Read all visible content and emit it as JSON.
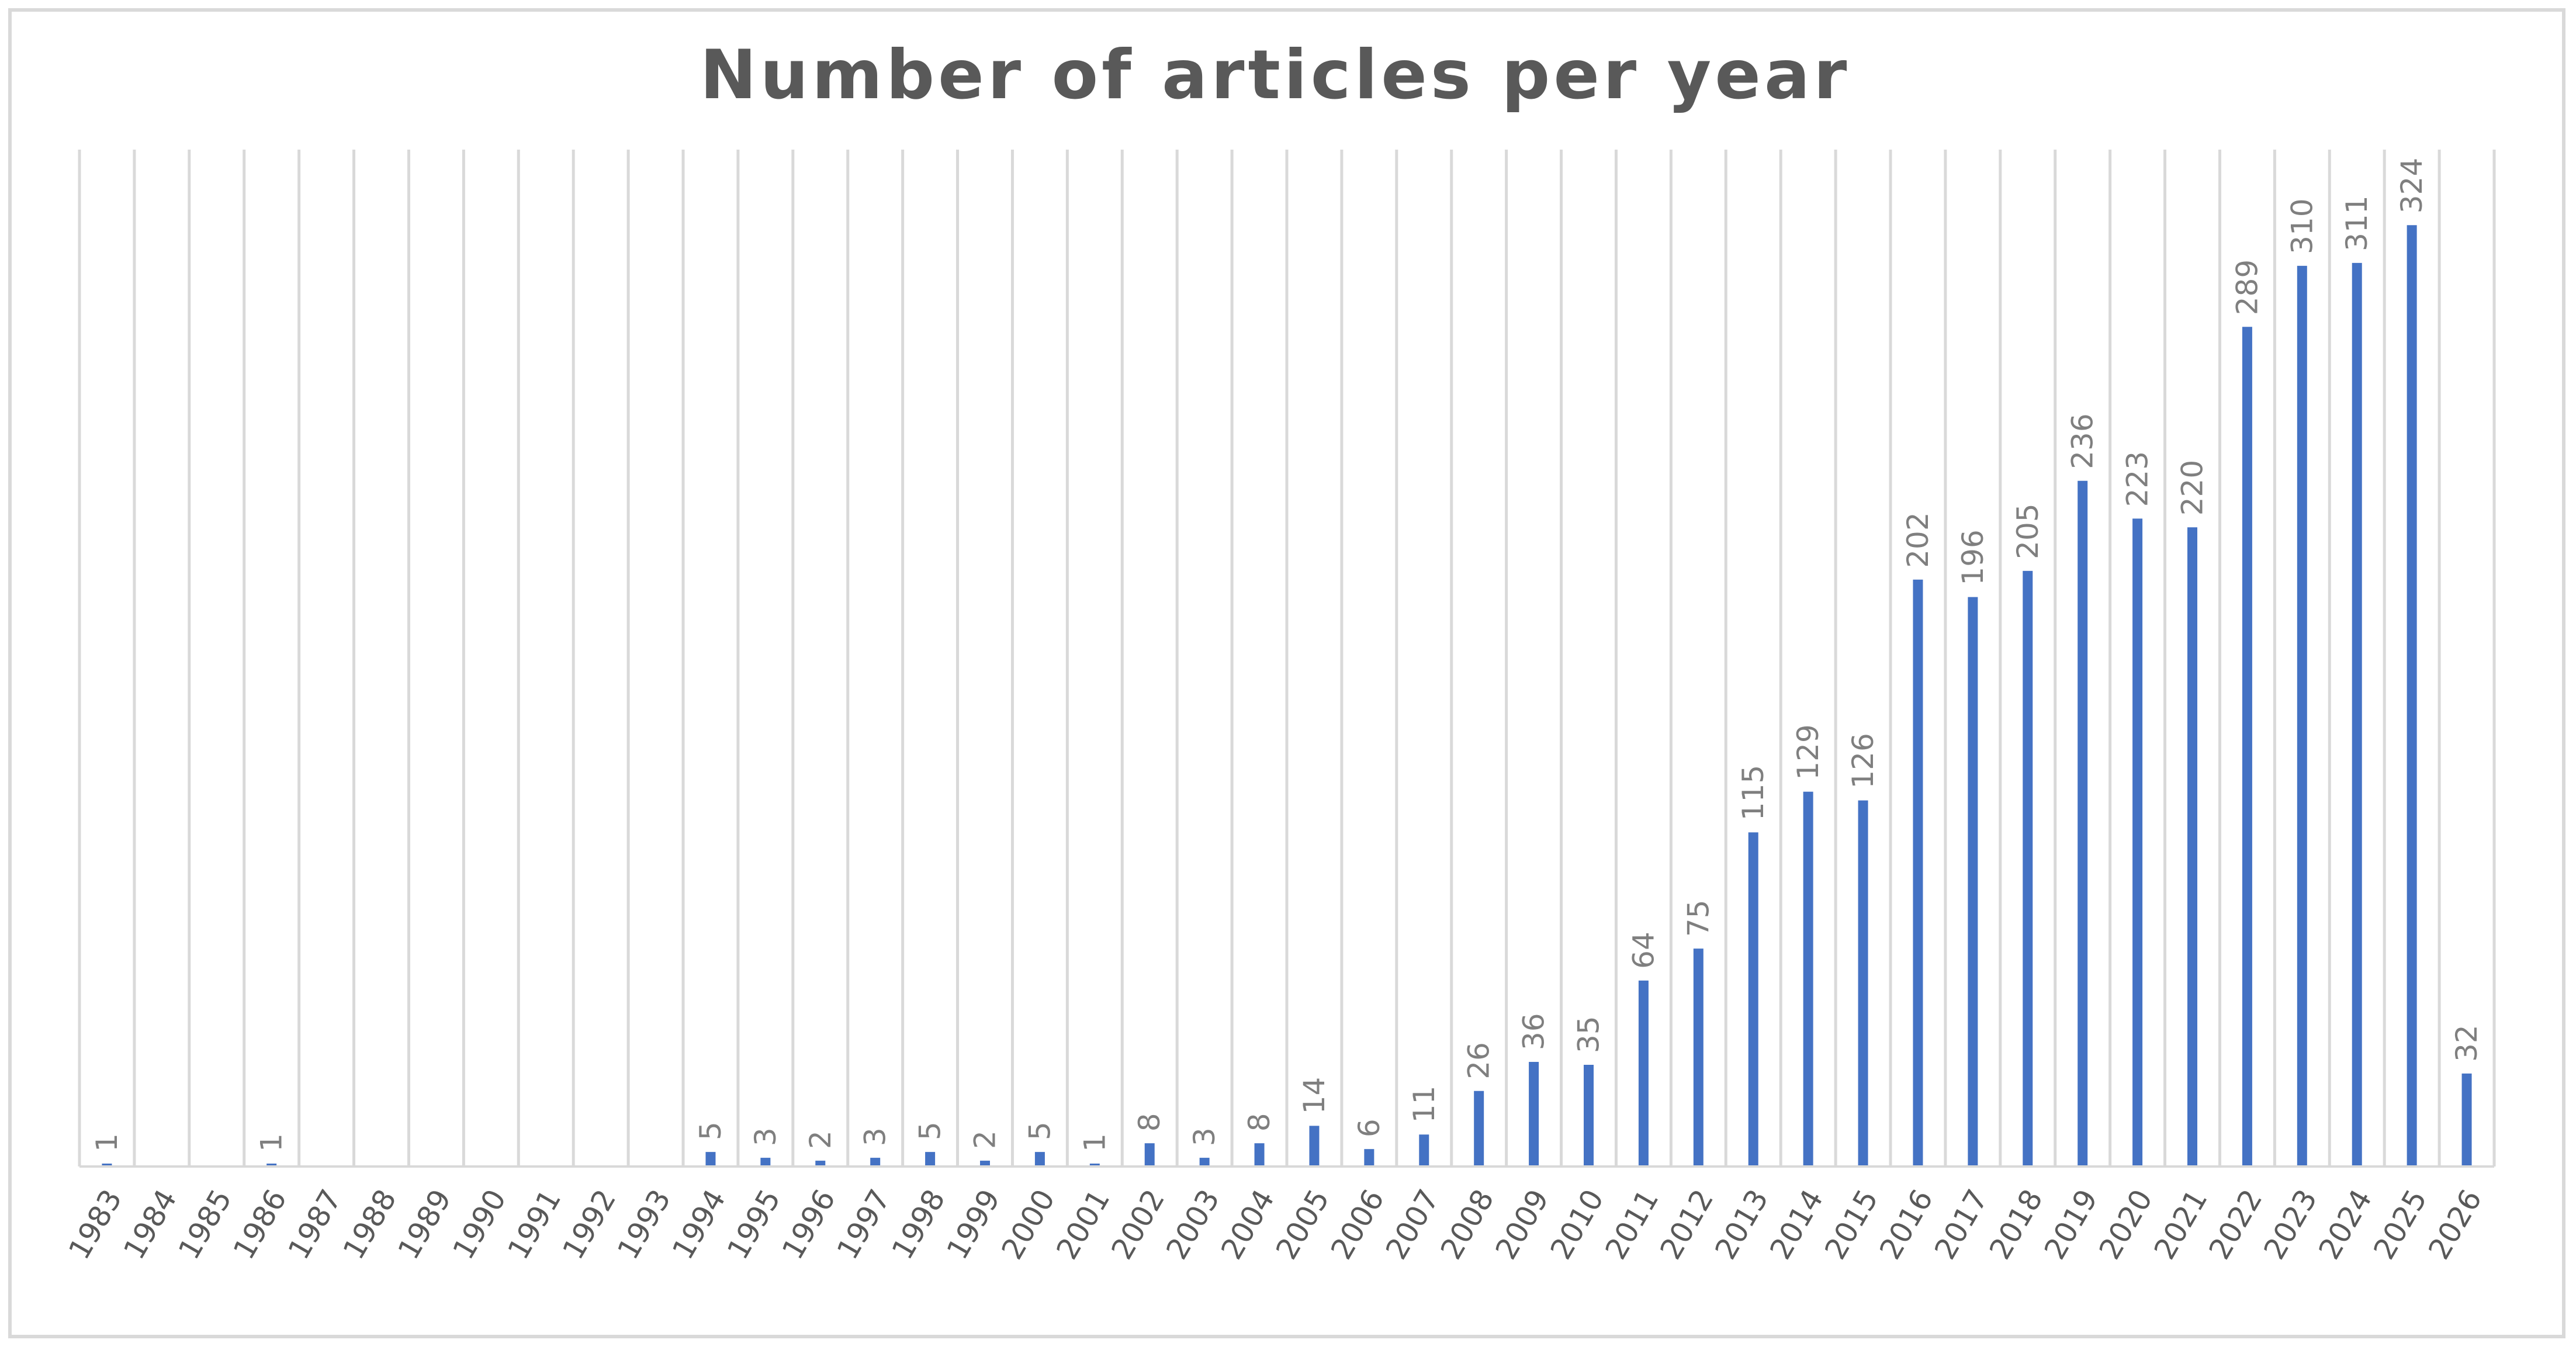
{
  "chart_data": {
    "type": "bar",
    "title": "Number of articles per year",
    "xlabel": "",
    "ylabel": "",
    "ylim": [
      0,
      350
    ],
    "grid": "vertical",
    "legend": "none",
    "bar_color": "#4472c4",
    "grid_color": "#d9d9d9",
    "categories": [
      "1983",
      "1984",
      "1985",
      "1986",
      "1987",
      "1988",
      "1989",
      "1990",
      "1991",
      "1992",
      "1993",
      "1994",
      "1995",
      "1996",
      "1997",
      "1998",
      "1999",
      "2000",
      "2001",
      "2002",
      "2003",
      "2004",
      "2005",
      "2006",
      "2007",
      "2008",
      "2009",
      "2010",
      "2011",
      "2012",
      "2013",
      "2014",
      "2015",
      "2016",
      "2017",
      "2018",
      "2019",
      "2020",
      "2021",
      "2022",
      "2023",
      "2024",
      "2025",
      "2026"
    ],
    "values": [
      1,
      null,
      null,
      1,
      null,
      null,
      null,
      null,
      null,
      null,
      null,
      5,
      3,
      2,
      3,
      5,
      2,
      5,
      1,
      8,
      3,
      8,
      14,
      6,
      11,
      26,
      36,
      35,
      64,
      75,
      115,
      129,
      126,
      202,
      196,
      205,
      236,
      223,
      220,
      289,
      310,
      311,
      324,
      32
    ],
    "data_labels": [
      "1",
      "",
      "",
      "1",
      "",
      "",
      "",
      "",
      "",
      "",
      "",
      "5",
      "3",
      "2",
      "3",
      "5",
      "2",
      "5",
      "1",
      "8",
      "3",
      "8",
      "14",
      "6",
      "11",
      "26",
      "36",
      "35",
      "64",
      "75",
      "115",
      "129",
      "126",
      "202",
      "196",
      "205",
      "236",
      "223",
      "220",
      "289",
      "310",
      "311",
      "324",
      "32"
    ]
  }
}
